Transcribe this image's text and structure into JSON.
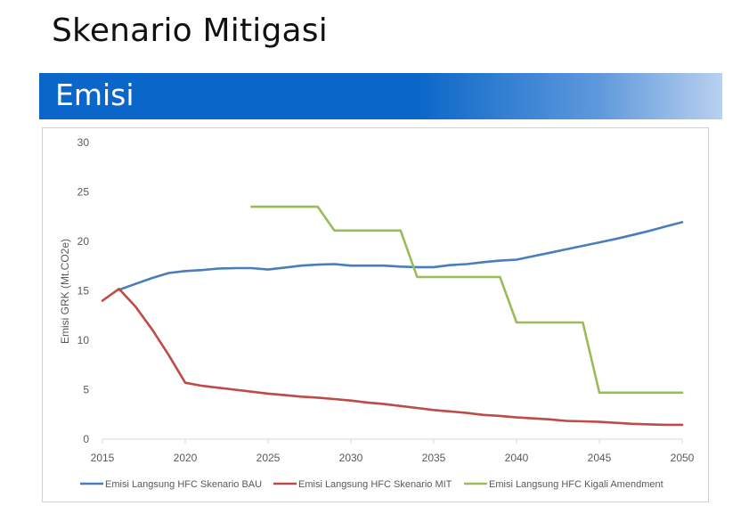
{
  "slide": {
    "title": "Skenario Mitigasi",
    "section_label": "Emisi",
    "band_color": "#0a66c8"
  },
  "chart_data": {
    "type": "line",
    "title": "",
    "xlabel": "",
    "ylabel": "Emisi GRK   (Mt.CO2e)",
    "xlim": [
      2015,
      2050
    ],
    "ylim": [
      0,
      30
    ],
    "x_ticks": [
      "2015",
      "2020",
      "2025",
      "2030",
      "2035",
      "2040",
      "2045",
      "2050"
    ],
    "y_ticks": [
      "0",
      "5",
      "10",
      "15",
      "20",
      "25",
      "30"
    ],
    "grid": false,
    "legend_position": "bottom",
    "series": [
      {
        "name": "Emisi Langsung HFC Skenario BAU",
        "color": "#4a7ebb",
        "points": [
          [
            2016,
            15.1
          ],
          [
            2017,
            15.7
          ],
          [
            2018,
            16.3
          ],
          [
            2019,
            16.8
          ],
          [
            2020,
            17.0
          ],
          [
            2021,
            17.1
          ],
          [
            2022,
            17.25
          ],
          [
            2023,
            17.3
          ],
          [
            2024,
            17.3
          ],
          [
            2025,
            17.15
          ],
          [
            2026,
            17.35
          ],
          [
            2027,
            17.55
          ],
          [
            2028,
            17.65
          ],
          [
            2029,
            17.7
          ],
          [
            2030,
            17.55
          ],
          [
            2031,
            17.55
          ],
          [
            2032,
            17.55
          ],
          [
            2033,
            17.45
          ],
          [
            2034,
            17.4
          ],
          [
            2035,
            17.4
          ],
          [
            2036,
            17.6
          ],
          [
            2037,
            17.7
          ],
          [
            2038,
            17.9
          ],
          [
            2039,
            18.05
          ],
          [
            2040,
            18.15
          ],
          [
            2041,
            18.5
          ],
          [
            2042,
            18.85
          ],
          [
            2043,
            19.2
          ],
          [
            2044,
            19.55
          ],
          [
            2045,
            19.9
          ],
          [
            2046,
            20.25
          ],
          [
            2047,
            20.65
          ],
          [
            2048,
            21.05
          ],
          [
            2049,
            21.5
          ],
          [
            2050,
            21.95
          ]
        ]
      },
      {
        "name": "Emisi Langsung HFC Skenario MIT",
        "color": "#be4b48",
        "points": [
          [
            2015,
            14.0
          ],
          [
            2016,
            15.2
          ],
          [
            2017,
            13.4
          ],
          [
            2018,
            11.1
          ],
          [
            2019,
            8.5
          ],
          [
            2020,
            5.7
          ],
          [
            2021,
            5.4
          ],
          [
            2022,
            5.2
          ],
          [
            2023,
            5.0
          ],
          [
            2024,
            4.8
          ],
          [
            2025,
            4.6
          ],
          [
            2026,
            4.45
          ],
          [
            2027,
            4.3
          ],
          [
            2028,
            4.2
          ],
          [
            2029,
            4.05
          ],
          [
            2030,
            3.9
          ],
          [
            2031,
            3.7
          ],
          [
            2032,
            3.55
          ],
          [
            2033,
            3.35
          ],
          [
            2034,
            3.15
          ],
          [
            2035,
            2.95
          ],
          [
            2036,
            2.8
          ],
          [
            2037,
            2.65
          ],
          [
            2038,
            2.45
          ],
          [
            2039,
            2.35
          ],
          [
            2040,
            2.2
          ],
          [
            2041,
            2.1
          ],
          [
            2042,
            2.0
          ],
          [
            2043,
            1.85
          ],
          [
            2044,
            1.8
          ],
          [
            2045,
            1.75
          ],
          [
            2046,
            1.65
          ],
          [
            2047,
            1.55
          ],
          [
            2048,
            1.5
          ],
          [
            2049,
            1.45
          ],
          [
            2050,
            1.45
          ]
        ]
      },
      {
        "name": "Emisi Langsung HFC Kigali Amendment",
        "color": "#9bbb59",
        "points": [
          [
            2024,
            23.5
          ],
          [
            2028,
            23.5
          ],
          [
            2029,
            21.1
          ],
          [
            2033,
            21.1
          ],
          [
            2034,
            16.4
          ],
          [
            2039,
            16.4
          ],
          [
            2040,
            11.8
          ],
          [
            2044,
            11.8
          ],
          [
            2045,
            4.7
          ],
          [
            2050,
            4.7
          ]
        ]
      }
    ]
  }
}
